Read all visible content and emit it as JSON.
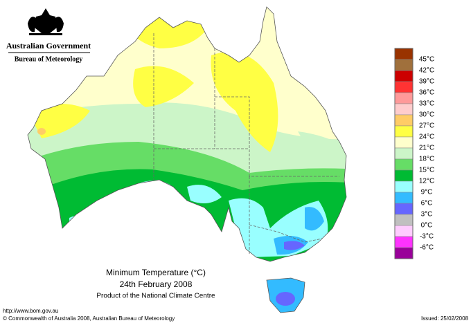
{
  "header": {
    "government": "Australian Government",
    "agency": "Bureau of Meteorology"
  },
  "legend": {
    "labels": [
      "45°C",
      "42°C",
      "39°C",
      "36°C",
      "33°C",
      "30°C",
      "27°C",
      "24°C",
      "21°C",
      "18°C",
      "15°C",
      "12°C",
      "9°C",
      "6°C",
      "3°C",
      "0°C",
      "-3°C",
      "-6°C"
    ],
    "colors": [
      "#993300",
      "#a0703c",
      "#cc0000",
      "#ff3333",
      "#ff9999",
      "#ffcccc",
      "#ffcc66",
      "#ffff44",
      "#ffffcc",
      "#ccf5c8",
      "#66dd66",
      "#00bb33",
      "#99ffff",
      "#33bbff",
      "#6666ff",
      "#c0c0c0",
      "#ffccff",
      "#ff33ff",
      "#990099"
    ]
  },
  "caption": {
    "title": "Minimum Temperature (°C)",
    "date": "24th February 2008",
    "product": "Product of the National Climate Centre"
  },
  "footer": {
    "url": "http://www.bom.gov.au",
    "copyright": "© Commonwealth of Australia 2008, Australian Bureau of Meteorology",
    "issued": "Issued: 25/02/2008"
  }
}
